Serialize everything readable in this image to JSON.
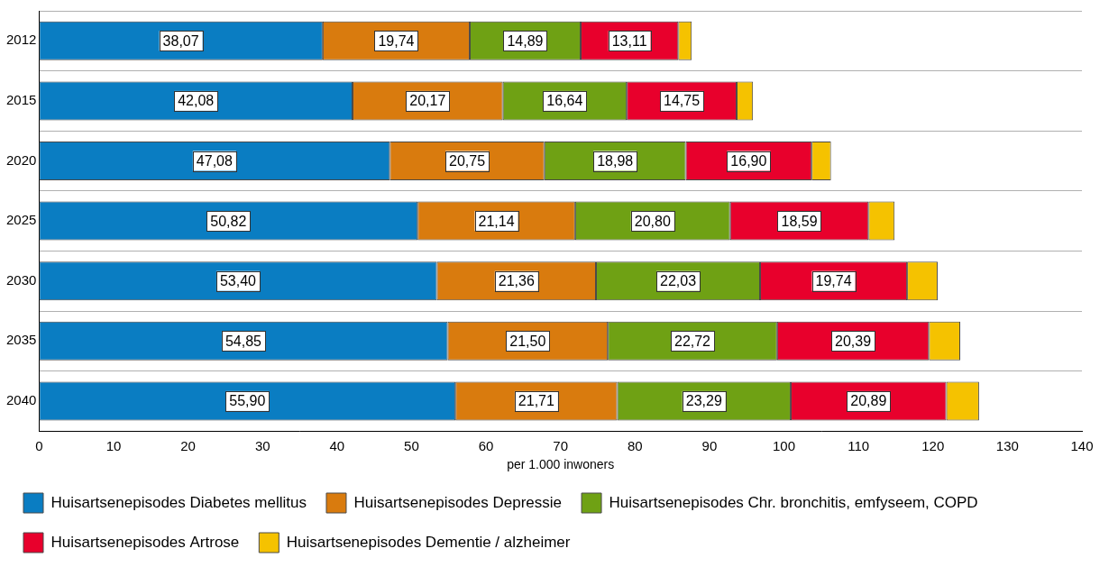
{
  "chart_data": {
    "type": "bar",
    "orientation": "horizontal",
    "stacked": true,
    "grid": true,
    "legend": "bottom",
    "x_label": "per 1.000 inwoners",
    "categories": [
      "2012",
      "2015",
      "2020",
      "2025",
      "2030",
      "2035",
      "2040"
    ],
    "xlim": [
      0,
      140
    ],
    "xticks": [
      0,
      10,
      20,
      30,
      40,
      50,
      60,
      70,
      80,
      90,
      100,
      110,
      120,
      130,
      140
    ],
    "series": [
      {
        "name": "Huisartsenepisodes Diabetes mellitus",
        "color": "#0a7dc2",
        "data_labels": true,
        "values": [
          38.07,
          42.08,
          47.08,
          50.82,
          53.4,
          54.85,
          55.9
        ],
        "value_labels": [
          "38,07",
          "42,08",
          "47,08",
          "50,82",
          "53,40",
          "54,85",
          "55,90"
        ]
      },
      {
        "name": "Huisartsenepisodes Depressie",
        "color": "#d97b0e",
        "data_labels": true,
        "values": [
          19.74,
          20.17,
          20.75,
          21.14,
          21.36,
          21.5,
          21.71
        ],
        "value_labels": [
          "19,74",
          "20,17",
          "20,75",
          "21,14",
          "21,36",
          "21,50",
          "21,71"
        ]
      },
      {
        "name": "Huisartsenepisodes Chr. bronchitis, emfyseem, COPD",
        "color": "#6fa114",
        "data_labels": true,
        "values": [
          14.89,
          16.64,
          18.98,
          20.8,
          22.03,
          22.72,
          23.29
        ],
        "value_labels": [
          "14,89",
          "16,64",
          "18,98",
          "20,80",
          "22,03",
          "22,72",
          "23,29"
        ]
      },
      {
        "name": "Huisartsenepisodes Artrose",
        "color": "#e8002c",
        "data_labels": true,
        "values": [
          13.11,
          14.75,
          16.9,
          18.59,
          19.74,
          20.39,
          20.89
        ],
        "value_labels": [
          "13,11",
          "14,75",
          "16,90",
          "18,59",
          "19,74",
          "20,39",
          "20,89"
        ]
      },
      {
        "name": "Huisartsenepisodes Dementie / alzheimer",
        "color": "#f5c200",
        "data_labels": false,
        "values": [
          1.8,
          2.2,
          2.6,
          3.5,
          4.1,
          4.2,
          4.4
        ]
      }
    ]
  }
}
